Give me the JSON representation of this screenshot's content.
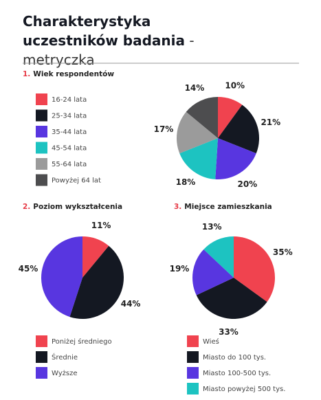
{
  "header": {
    "title": "Charakterystyka uczestników badania",
    "subtitle": "- metryczka"
  },
  "chart_data": [
    {
      "type": "pie",
      "number": "1.",
      "title": "Wiek respondentów",
      "categories": [
        "16-24 lata",
        "25-34 lata",
        "35-44 lata",
        "45-54 lata",
        "55-64 lata",
        "Powyżej 64 lat"
      ],
      "values": [
        10,
        21,
        20,
        18,
        17,
        14
      ],
      "value_labels": [
        "10%",
        "21%",
        "20%",
        "18%",
        "17%",
        "14%"
      ],
      "colors": [
        "#f0434f",
        "#141822",
        "#5836e0",
        "#1dc3c1",
        "#9b9b9b",
        "#4d4d4f"
      ]
    },
    {
      "type": "pie",
      "number": "2.",
      "title": "Poziom wykształcenia",
      "categories": [
        "Poniżej średniego",
        "Średnie",
        "Wyższe"
      ],
      "values": [
        11,
        44,
        45
      ],
      "value_labels": [
        "11%",
        "44%",
        "45%"
      ],
      "colors": [
        "#f0434f",
        "#141822",
        "#5836e0"
      ]
    },
    {
      "type": "pie",
      "number": "3.",
      "title": "Miejsce zamieszkania",
      "categories": [
        "Wieś",
        "Miasto do 100 tys.",
        "Miasto 100-500 tys.",
        "Miasto powyżej 500 tys."
      ],
      "values": [
        35,
        33,
        19,
        13
      ],
      "value_labels": [
        "35%",
        "33%",
        "19%",
        "13%"
      ],
      "colors": [
        "#f0434f",
        "#141822",
        "#5836e0",
        "#1dc3c1"
      ]
    }
  ]
}
